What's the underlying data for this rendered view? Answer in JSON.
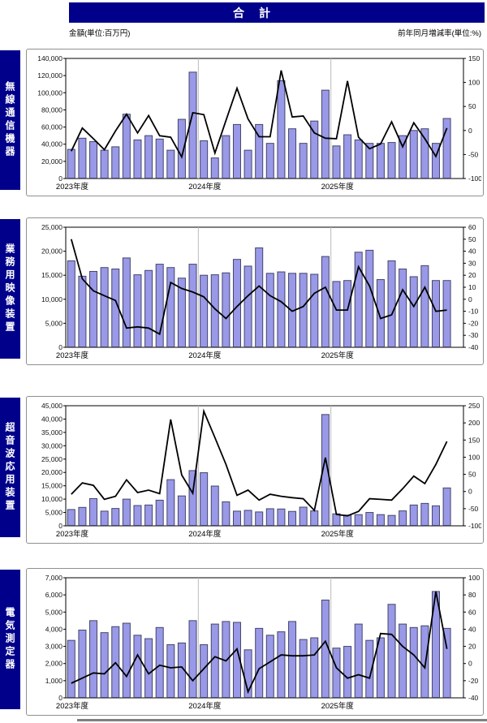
{
  "header": {
    "title": "合　計"
  },
  "units": {
    "left": "金額(単位:百万円)",
    "right": "前年同月増減率(単位:%)"
  },
  "colors": {
    "navy": "#00008B",
    "bar_fill": "#9999E8",
    "bar_stroke": "#45456A",
    "line": "#000000",
    "plot_border": "#000000",
    "separator": "#BBBBBB",
    "panel_border": "#8F8F8F",
    "tick_text": "#111111"
  },
  "chart_data": [
    {
      "title": "無線通信機器",
      "type": "bar",
      "slots": 36,
      "x_groups": [
        {
          "label": "2023年度",
          "count": 12
        },
        {
          "label": "2024年度",
          "count": 12
        },
        {
          "label": "2025年度",
          "count": 11
        }
      ],
      "bar_series": {
        "name": "金額(百万円)",
        "values": [
          34000,
          47000,
          43000,
          33000,
          37000,
          75000,
          45000,
          50000,
          46000,
          33000,
          69000,
          124000,
          44000,
          24000,
          50000,
          63000,
          33000,
          63000,
          41000,
          114000,
          58000,
          41000,
          67000,
          103000,
          38000,
          51000,
          45000,
          41000,
          41000,
          42000,
          50000,
          56000,
          58000,
          41000,
          70000
        ]
      },
      "line_series": {
        "name": "前年同月増減率(%)",
        "values": [
          -43,
          5,
          -17,
          -40,
          -1,
          34,
          -5,
          31,
          -11,
          -14,
          -55,
          37,
          33,
          -47,
          21,
          88,
          24,
          -13,
          -13,
          125,
          28,
          30,
          -5,
          -16,
          -17,
          103,
          -14,
          -38,
          -28,
          18,
          -34,
          16,
          -17,
          -54,
          5
        ]
      },
      "left_axis": {
        "min": 0,
        "max": 140000,
        "ticks": [
          "0",
          "20,000",
          "40,000",
          "60,000",
          "80,000",
          "100,000",
          "120,000",
          "140,000"
        ]
      },
      "right_axis": {
        "min": -100,
        "max": 150,
        "ticks": [
          "-100",
          "-50",
          "0",
          "50",
          "100",
          "150"
        ]
      }
    },
    {
      "title": "業務用映像装置",
      "type": "bar",
      "slots": 36,
      "x_groups": [
        {
          "label": "2023年度",
          "count": 12
        },
        {
          "label": "2024年度",
          "count": 12
        },
        {
          "label": "2025年度",
          "count": 11
        }
      ],
      "bar_series": {
        "name": "金額(百万円)",
        "values": [
          18000,
          14800,
          15800,
          16600,
          16300,
          18600,
          15100,
          16000,
          17300,
          16600,
          14400,
          17300,
          15000,
          15100,
          15500,
          18300,
          16900,
          20700,
          15400,
          15700,
          15400,
          15400,
          15200,
          18900,
          13700,
          13900,
          19800,
          20200,
          14100,
          18000,
          16300,
          14700,
          17000,
          13900,
          13900
        ]
      },
      "line_series": {
        "name": "前年同月増減率(%)",
        "values": [
          50,
          17,
          7,
          3,
          -1,
          -24,
          -23,
          -24,
          -29,
          14,
          9,
          6,
          2,
          -8,
          -16,
          -6,
          3,
          11,
          3,
          -2,
          -10,
          -6,
          5,
          10,
          -9,
          -9,
          27,
          11,
          -16,
          -13,
          8,
          -6,
          10,
          -10,
          -9
        ]
      },
      "left_axis": {
        "min": 0,
        "max": 25000,
        "ticks": [
          "0",
          "5,000",
          "10,000",
          "15,000",
          "20,000",
          "25,000"
        ]
      },
      "right_axis": {
        "min": -40,
        "max": 60,
        "ticks": [
          "-40",
          "-30",
          "-20",
          "-10",
          "0",
          "10",
          "20",
          "30",
          "40",
          "50",
          "60"
        ]
      }
    },
    {
      "title": "超音波応用装置",
      "type": "bar",
      "slots": 36,
      "x_groups": [
        {
          "label": "2023年度",
          "count": 12
        },
        {
          "label": "2024年度",
          "count": 12
        },
        {
          "label": "2025年度",
          "count": 11
        }
      ],
      "bar_series": {
        "name": "金額(百万円)",
        "values": [
          6100,
          6900,
          10200,
          5500,
          6500,
          10000,
          7600,
          7800,
          9600,
          17300,
          11200,
          20700,
          19900,
          14900,
          9000,
          5500,
          5800,
          5200,
          6400,
          6300,
          5400,
          7000,
          5600,
          41700,
          4500,
          4000,
          4200,
          5000,
          4200,
          3900,
          5600,
          7800,
          8400,
          7500,
          14200
        ]
      },
      "line_series": {
        "name": "前年同月増減率(%)",
        "values": [
          -8,
          25,
          18,
          -23,
          -14,
          34,
          -3,
          4,
          -6,
          210,
          48,
          -5,
          234,
          157,
          79,
          -11,
          4,
          -25,
          -8,
          -14,
          -18,
          -21,
          -55,
          99,
          -67,
          -71,
          -58,
          -21,
          -23,
          -25,
          8,
          45,
          23,
          79,
          146
        ]
      },
      "left_axis": {
        "min": 0,
        "max": 45000,
        "ticks": [
          "0",
          "5,000",
          "10,000",
          "15,000",
          "20,000",
          "25,000",
          "30,000",
          "35,000",
          "40,000",
          "45,000"
        ]
      },
      "right_axis": {
        "min": -100,
        "max": 250,
        "ticks": [
          "-100",
          "-50",
          "0",
          "50",
          "100",
          "150",
          "200",
          "250"
        ]
      }
    },
    {
      "title": "電気測定器",
      "type": "bar",
      "slots": 36,
      "x_groups": [
        {
          "label": "2023年度",
          "count": 12
        },
        {
          "label": "2024年度",
          "count": 12
        },
        {
          "label": "2025年度",
          "count": 11
        }
      ],
      "bar_series": {
        "name": "金額(百万円)",
        "values": [
          3350,
          3950,
          4500,
          3800,
          4150,
          4350,
          3650,
          3450,
          4100,
          3100,
          3200,
          4500,
          3100,
          4300,
          4450,
          4400,
          2800,
          4050,
          3650,
          3850,
          4450,
          3400,
          3500,
          5700,
          2900,
          3000,
          4300,
          3350,
          3500,
          5450,
          4300,
          4100,
          4200,
          6200,
          4050
        ]
      },
      "line_series": {
        "name": "前年同月増減率(%)",
        "values": [
          -23,
          -17,
          -11,
          -12,
          1,
          -15,
          10,
          -12,
          -2,
          -5,
          -4,
          -20,
          -6,
          8,
          3,
          17,
          -33,
          -6,
          2,
          10,
          9,
          9,
          10,
          26,
          -5,
          -17,
          -13,
          -17,
          35,
          34,
          20,
          10,
          -5,
          84,
          17
        ]
      },
      "left_axis": {
        "min": 0,
        "max": 7000,
        "ticks": [
          "0",
          "1,000",
          "2,000",
          "3,000",
          "4,000",
          "5,000",
          "6,000",
          "7,000"
        ]
      },
      "right_axis": {
        "min": -40,
        "max": 100,
        "ticks": [
          "-40",
          "-20",
          "0",
          "20",
          "40",
          "60",
          "80",
          "100"
        ]
      }
    }
  ]
}
